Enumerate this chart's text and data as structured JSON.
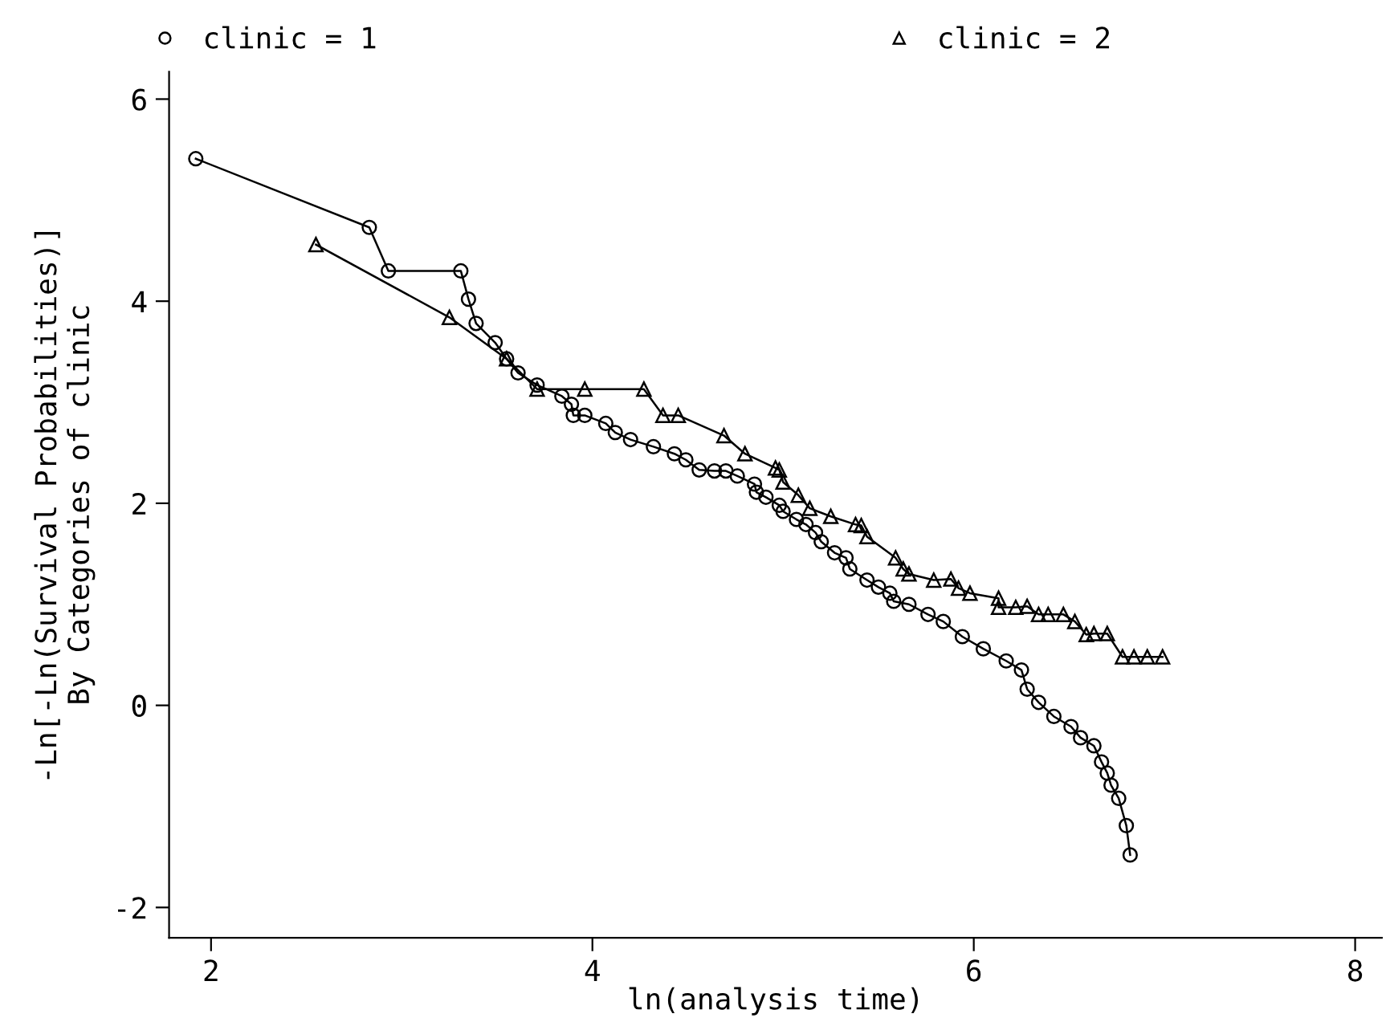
{
  "chart_data": {
    "type": "line",
    "xlabel": "ln(analysis time)",
    "ylabel": "-Ln[-Ln(Survival Probabilities)]\nBy Categories of clinic",
    "xlim": [
      1.78,
      8.14
    ],
    "xticks": [
      2,
      4,
      6,
      8
    ],
    "ylim": [
      -2.3,
      6.27
    ],
    "yticks": [
      -2,
      0,
      2,
      4,
      6
    ],
    "grid": false,
    "legend": "top",
    "line_style": "solid",
    "series": [
      {
        "name": "clinic = 1",
        "color": "#000000",
        "marker": "circle",
        "x": [
          1.92,
          2.83,
          2.93,
          3.31,
          3.35,
          3.39,
          3.49,
          3.55,
          3.61,
          3.71,
          3.84,
          3.89,
          3.9,
          3.96,
          4.07,
          4.12,
          4.2,
          4.32,
          4.43,
          4.49,
          4.56,
          4.64,
          4.7,
          4.76,
          4.85,
          4.86,
          4.91,
          4.98,
          5.0,
          5.07,
          5.12,
          5.17,
          5.2,
          5.27,
          5.33,
          5.35,
          5.44,
          5.5,
          5.56,
          5.58,
          5.66,
          5.76,
          5.84,
          5.94,
          6.05,
          6.17,
          6.25,
          6.28,
          6.34,
          6.42,
          6.51,
          6.56,
          6.63,
          6.67,
          6.7,
          6.72,
          6.76,
          6.8,
          6.82
        ],
        "values": [
          5.41,
          4.73,
          4.3,
          4.3,
          4.02,
          3.78,
          3.59,
          3.43,
          3.29,
          3.17,
          3.06,
          2.98,
          2.87,
          2.87,
          2.79,
          2.7,
          2.63,
          2.56,
          2.49,
          2.43,
          2.33,
          2.32,
          2.32,
          2.27,
          2.19,
          2.11,
          2.06,
          1.98,
          1.92,
          1.84,
          1.79,
          1.71,
          1.62,
          1.51,
          1.46,
          1.35,
          1.24,
          1.17,
          1.11,
          1.03,
          1.0,
          0.9,
          0.83,
          0.68,
          0.56,
          0.44,
          0.35,
          0.16,
          0.03,
          -0.11,
          -0.21,
          -0.32,
          -0.4,
          -0.56,
          -0.67,
          -0.79,
          -0.92,
          -1.19,
          -1.48
        ]
      },
      {
        "name": "clinic = 2",
        "color": "#000000",
        "marker": "triangle",
        "x": [
          2.55,
          3.25,
          3.55,
          3.71,
          3.96,
          4.27,
          4.37,
          4.45,
          4.69,
          4.8,
          4.96,
          4.98,
          5.0,
          5.08,
          5.14,
          5.25,
          5.38,
          5.41,
          5.44,
          5.59,
          5.63,
          5.66,
          5.79,
          5.88,
          5.92,
          5.98,
          6.13,
          6.13,
          6.22,
          6.28,
          6.34,
          6.39,
          6.47,
          6.53,
          6.59,
          6.63,
          6.7,
          6.78,
          6.84,
          6.91,
          6.99
        ],
        "values": [
          4.56,
          3.84,
          3.43,
          3.13,
          3.13,
          3.13,
          2.87,
          2.87,
          2.67,
          2.49,
          2.35,
          2.33,
          2.21,
          2.08,
          1.95,
          1.87,
          1.79,
          1.78,
          1.67,
          1.46,
          1.35,
          1.3,
          1.24,
          1.25,
          1.16,
          1.11,
          1.06,
          0.97,
          0.97,
          0.98,
          0.9,
          0.9,
          0.9,
          0.83,
          0.7,
          0.71,
          0.71,
          0.48,
          0.48,
          0.48,
          0.48
        ]
      }
    ]
  }
}
